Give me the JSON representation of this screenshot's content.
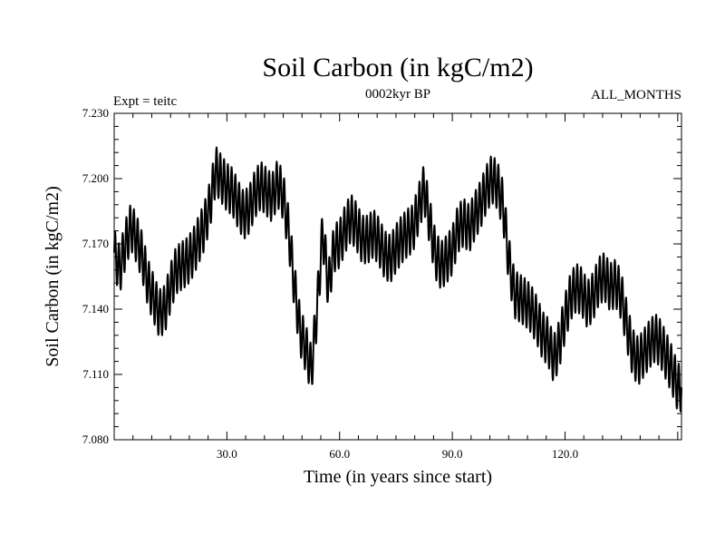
{
  "chart_data": {
    "type": "line",
    "title": "Soil Carbon (in kgC/m2)",
    "subtitle": "0002kyr BP",
    "left_label": "Expt = teitc",
    "right_label": "ALL_MONTHS",
    "xlabel": "Time (in years since start)",
    "ylabel": "Soil Carbon (in kgC/m2)",
    "xlim": [
      0.0,
      151.0
    ],
    "ylim": [
      7.08,
      7.23
    ],
    "xticks": [
      30.0,
      60.0,
      90.0,
      120.0
    ],
    "xtick_labels": [
      "30.0",
      "60.0",
      "90.0",
      "120.0"
    ],
    "yticks": [
      7.08,
      7.11,
      7.14,
      7.17,
      7.2,
      7.23
    ],
    "ytick_labels": [
      "7.080",
      "7.110",
      "7.140",
      "7.170",
      "7.200",
      "7.230"
    ],
    "series": [
      {
        "name": "Soil Carbon",
        "color": "#000000",
        "seasonal_amplitude": 0.011,
        "seasonal_period_years": 1.0,
        "x": [
          0,
          1.5,
          3,
          4.5,
          6,
          7.5,
          9,
          10.5,
          12,
          13.5,
          15,
          16.5,
          18,
          19.5,
          21,
          22.5,
          24,
          25.5,
          27,
          28.5,
          30,
          31.5,
          33,
          34.5,
          36,
          37.5,
          39,
          40.5,
          42,
          43.5,
          45,
          46.5,
          48,
          49.5,
          51,
          52.5,
          54,
          55.5,
          57,
          58.5,
          60,
          61.5,
          63,
          64.5,
          66,
          67.5,
          69,
          70.5,
          72,
          73.5,
          75,
          76.5,
          78,
          79.5,
          81,
          82.5,
          84,
          85.5,
          87,
          88.5,
          90,
          91.5,
          93,
          94.5,
          96,
          97.5,
          99,
          100.5,
          102,
          103.5,
          105,
          106.5,
          108,
          109.5,
          111,
          112.5,
          114,
          115.5,
          117,
          118.5,
          120,
          121.5,
          123,
          124.5,
          126,
          127.5,
          129,
          130.5,
          132,
          133.5,
          135,
          136.5,
          138,
          139.5,
          141,
          142.5,
          144,
          145.5,
          147,
          148.5,
          150
        ],
        "y": [
          7.166,
          7.158,
          7.17,
          7.178,
          7.172,
          7.164,
          7.152,
          7.145,
          7.138,
          7.14,
          7.15,
          7.158,
          7.16,
          7.162,
          7.166,
          7.172,
          7.178,
          7.188,
          7.204,
          7.2,
          7.196,
          7.194,
          7.188,
          7.183,
          7.186,
          7.193,
          7.197,
          7.194,
          7.191,
          7.198,
          7.192,
          7.175,
          7.15,
          7.13,
          7.122,
          7.112,
          7.14,
          7.176,
          7.15,
          7.168,
          7.17,
          7.177,
          7.182,
          7.178,
          7.172,
          7.172,
          7.175,
          7.171,
          7.165,
          7.163,
          7.168,
          7.172,
          7.175,
          7.177,
          7.186,
          7.196,
          7.18,
          7.165,
          7.16,
          7.163,
          7.167,
          7.177,
          7.18,
          7.177,
          7.183,
          7.188,
          7.195,
          7.2,
          7.197,
          7.188,
          7.163,
          7.147,
          7.145,
          7.143,
          7.14,
          7.135,
          7.128,
          7.125,
          7.117,
          7.124,
          7.136,
          7.146,
          7.15,
          7.148,
          7.142,
          7.146,
          7.153,
          7.155,
          7.15,
          7.152,
          7.146,
          7.132,
          7.12,
          7.116,
          7.12,
          7.124,
          7.127,
          7.124,
          7.118,
          7.112,
          7.104
        ]
      }
    ]
  }
}
